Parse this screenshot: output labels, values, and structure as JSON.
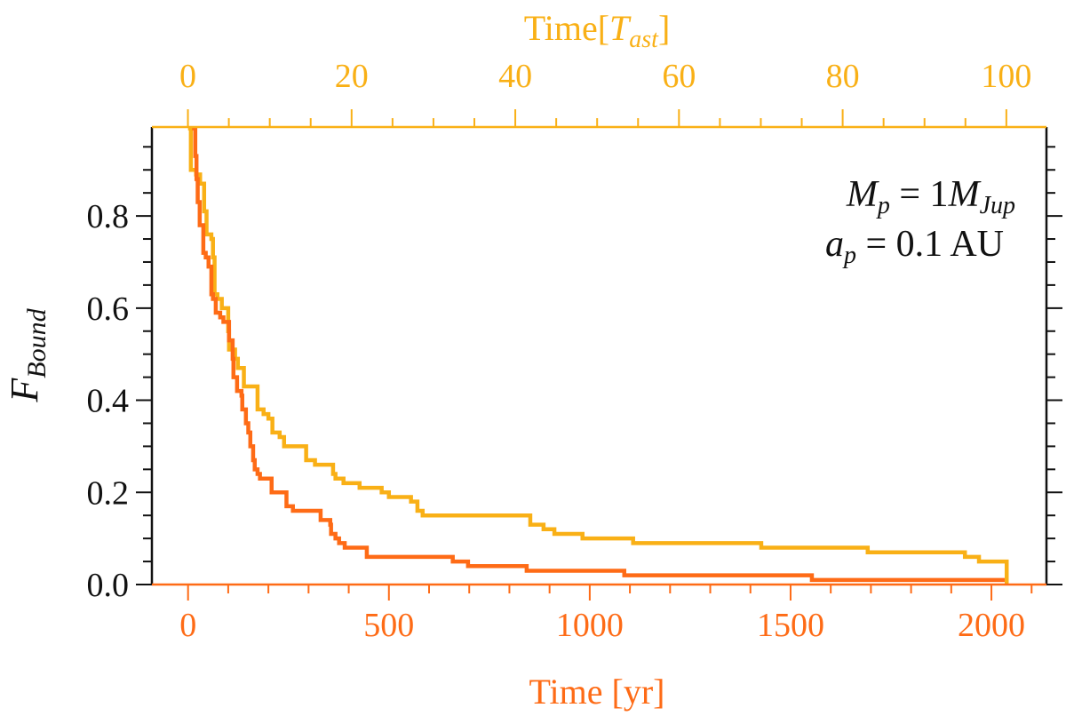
{
  "chart_data": {
    "type": "line",
    "step": true,
    "title": "",
    "xlabel": "Time [yr]",
    "xlim": [
      -90,
      2137
    ],
    "xticks": [
      0,
      500,
      1000,
      1500,
      2000
    ],
    "x_top_axis": {
      "label_prefix": "Time[",
      "label_var": "T",
      "label_sub": "ast",
      "label_suffix": "]",
      "xlim": [
        -4.4,
        104.9
      ],
      "ticks": [
        0,
        20,
        40,
        60,
        80,
        100
      ],
      "color": "#f9b016"
    },
    "ylabel_var": "F",
    "ylabel_sub": "Bound",
    "ylim": [
      0,
      0.993
    ],
    "yticks": [
      "0.0",
      "0.2",
      "0.4",
      "0.6",
      "0.8"
    ],
    "grid": false,
    "bottom_axis_color": "#fe6b16",
    "annotation": {
      "line1": {
        "var": "M",
        "sub": "p",
        "eq": " = 1",
        "var2": "M",
        "sub2": "Jup"
      },
      "line2": {
        "var": "a",
        "sub": "p",
        "eq": " = 0.1 AU"
      }
    },
    "series": [
      {
        "color": "#f9b016",
        "points": [
          [
            5,
            0.99
          ],
          [
            7,
            0.9
          ],
          [
            20,
            0.89
          ],
          [
            30,
            0.87
          ],
          [
            40,
            0.81
          ],
          [
            46,
            0.76
          ],
          [
            58,
            0.75
          ],
          [
            62,
            0.71
          ],
          [
            66,
            0.63
          ],
          [
            73,
            0.62
          ],
          [
            84,
            0.6
          ],
          [
            100,
            0.55
          ],
          [
            102,
            0.51
          ],
          [
            117,
            0.49
          ],
          [
            124,
            0.47
          ],
          [
            139,
            0.43
          ],
          [
            173,
            0.38
          ],
          [
            188,
            0.37
          ],
          [
            200,
            0.36
          ],
          [
            210,
            0.33
          ],
          [
            228,
            0.32
          ],
          [
            239,
            0.3
          ],
          [
            294,
            0.27
          ],
          [
            316,
            0.26
          ],
          [
            361,
            0.24
          ],
          [
            367,
            0.23
          ],
          [
            387,
            0.22
          ],
          [
            427,
            0.21
          ],
          [
            482,
            0.2
          ],
          [
            500,
            0.19
          ],
          [
            555,
            0.18
          ],
          [
            571,
            0.16
          ],
          [
            584,
            0.15
          ],
          [
            852,
            0.13
          ],
          [
            885,
            0.12
          ],
          [
            912,
            0.11
          ],
          [
            982,
            0.1
          ],
          [
            1108,
            0.09
          ],
          [
            1427,
            0.08
          ],
          [
            1692,
            0.07
          ],
          [
            1934,
            0.06
          ],
          [
            1969,
            0.05
          ],
          [
            2038,
            0.0
          ]
        ]
      },
      {
        "color": "#fe6b16",
        "points": [
          [
            15,
            0.99
          ],
          [
            18,
            0.93
          ],
          [
            21,
            0.88
          ],
          [
            24,
            0.83
          ],
          [
            29,
            0.78
          ],
          [
            38,
            0.72
          ],
          [
            44,
            0.71
          ],
          [
            51,
            0.69
          ],
          [
            58,
            0.63
          ],
          [
            62,
            0.62
          ],
          [
            69,
            0.59
          ],
          [
            80,
            0.58
          ],
          [
            88,
            0.57
          ],
          [
            102,
            0.53
          ],
          [
            111,
            0.49
          ],
          [
            113,
            0.45
          ],
          [
            122,
            0.42
          ],
          [
            133,
            0.41
          ],
          [
            135,
            0.38
          ],
          [
            144,
            0.35
          ],
          [
            150,
            0.33
          ],
          [
            155,
            0.3
          ],
          [
            162,
            0.27
          ],
          [
            166,
            0.25
          ],
          [
            173,
            0.24
          ],
          [
            179,
            0.23
          ],
          [
            208,
            0.2
          ],
          [
            245,
            0.17
          ],
          [
            261,
            0.16
          ],
          [
            330,
            0.14
          ],
          [
            354,
            0.13
          ],
          [
            356,
            0.11
          ],
          [
            367,
            0.1
          ],
          [
            376,
            0.09
          ],
          [
            390,
            0.08
          ],
          [
            445,
            0.06
          ],
          [
            659,
            0.05
          ],
          [
            697,
            0.04
          ],
          [
            843,
            0.03
          ],
          [
            1086,
            0.02
          ],
          [
            1553,
            0.01
          ],
          [
            2033,
            0.01
          ]
        ]
      }
    ]
  }
}
